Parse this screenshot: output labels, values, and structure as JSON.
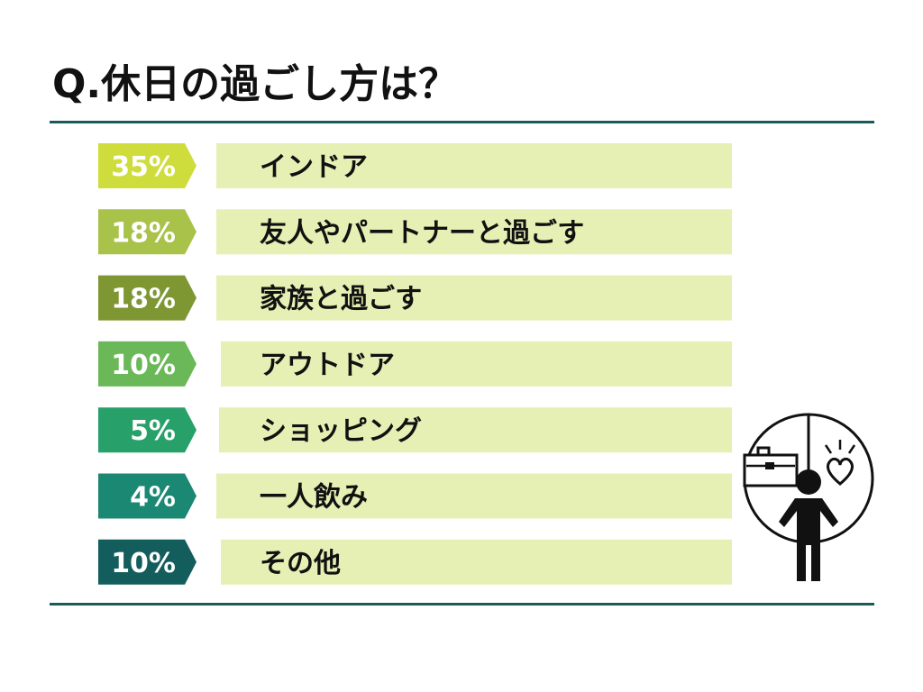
{
  "page": {
    "title": "Q.休日の過ごし方は？"
  },
  "chart_data": {
    "type": "bar",
    "title": "Q.休日の過ごし方は？",
    "categories": [
      "インドア",
      "友人やパートナーと過ごす",
      "家族と過ごす",
      "アウトドア",
      "ショッピング",
      "一人飲み",
      "その他"
    ],
    "values": [
      35,
      18,
      18,
      10,
      5,
      4,
      10
    ],
    "labels": [
      "35%",
      "18%",
      "18%",
      "10%",
      "5%",
      "4%",
      "10%"
    ],
    "unit": "%",
    "colors": {
      "badges": [
        "#cfdd3c",
        "#a8c24a",
        "#7e9733",
        "#6ab858",
        "#27a06a",
        "#1b8873",
        "#135d5c"
      ],
      "band": "#e6f0b4",
      "rule": "#1b5a5a"
    },
    "grid": false,
    "legend": "none"
  },
  "illustration": {
    "icon": "person-choice-icon"
  }
}
